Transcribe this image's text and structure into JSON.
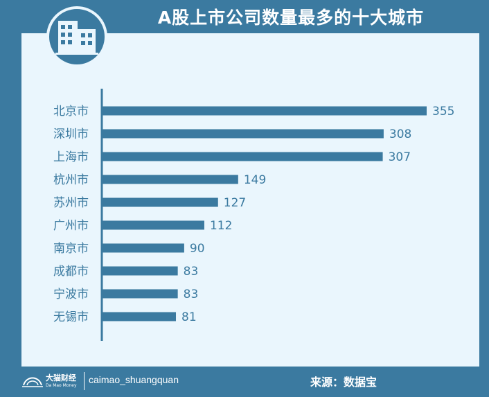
{
  "title": "A股上市公司数量最多的十大城市",
  "footer": {
    "brand_cn": "大猫财经",
    "brand_en": "Da Mao Money",
    "handle": "caimao_shuangquan",
    "source": "来源：数据宝"
  },
  "colors": {
    "frame": "#3b7aa0",
    "panel": "#eaf6fd",
    "bar": "#3b7aa0",
    "text": "#3b7aa0"
  },
  "chart_data": {
    "type": "bar",
    "orientation": "horizontal",
    "categories": [
      "北京市",
      "深圳市",
      "上海市",
      "杭州市",
      "苏州市",
      "广州市",
      "南京市",
      "成都市",
      "宁波市",
      "无锡市"
    ],
    "values": [
      355,
      308,
      307,
      149,
      127,
      112,
      90,
      83,
      83,
      81
    ],
    "data_labels": [
      "355",
      "308",
      "307",
      "149",
      "127",
      "112",
      "90",
      "83",
      "83",
      "81"
    ],
    "title": "A股上市公司数量最多的十大城市",
    "xlabel": "",
    "ylabel": "",
    "xlim": [
      0,
      355
    ],
    "grid": false,
    "legend": "none"
  }
}
